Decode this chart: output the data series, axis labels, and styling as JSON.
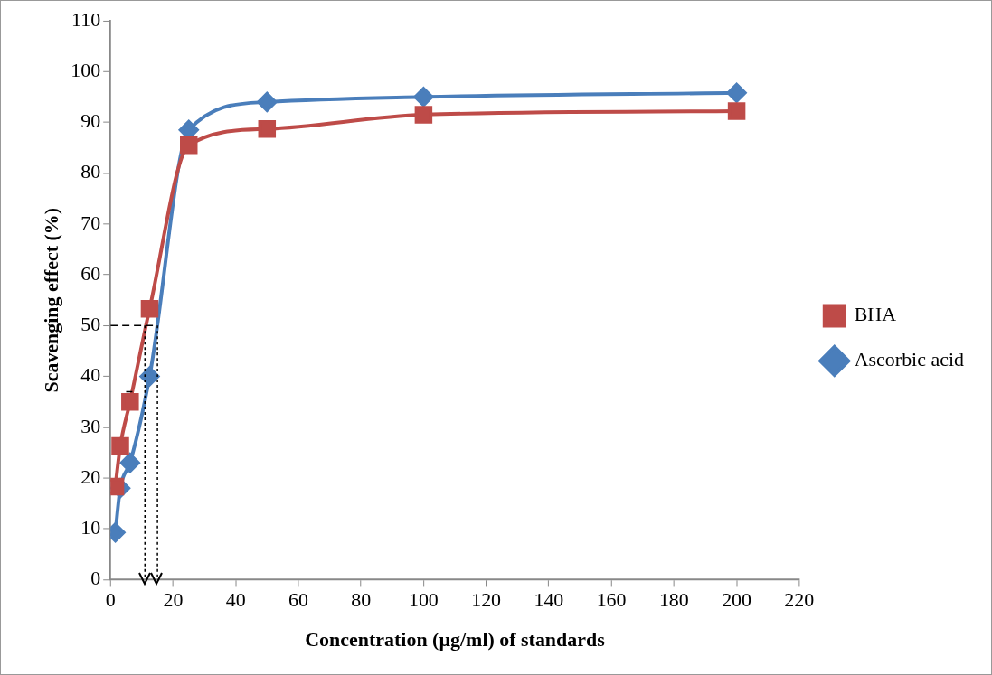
{
  "chart_data": {
    "type": "line",
    "xlabel": "Concentration (µg/ml) of standards",
    "ylabel": "Scavenging effect (%)",
    "xlim": [
      0,
      220
    ],
    "xticks": [
      0,
      20,
      40,
      60,
      80,
      100,
      120,
      140,
      160,
      180,
      200,
      220
    ],
    "ylim": [
      0,
      110
    ],
    "yticks": [
      0,
      10,
      20,
      30,
      40,
      50,
      60,
      70,
      80,
      90,
      100,
      110
    ],
    "grid": false,
    "legend": "right",
    "series": [
      {
        "name": "Ascorbic acid",
        "color": "#4a7ebb",
        "marker": "diamond",
        "x": [
          1.56,
          3.125,
          6.25,
          12.5,
          25,
          50,
          100,
          200
        ],
        "values": [
          9.3,
          18,
          23,
          40,
          88.5,
          94,
          95,
          95.8
        ]
      },
      {
        "name": "BHA",
        "color": "#be4b48",
        "marker": "square",
        "x": [
          1.56,
          3.125,
          6.25,
          12.5,
          25,
          50,
          100,
          200
        ],
        "values": [
          18.3,
          26.3,
          35,
          53.3,
          85.5,
          88.7,
          91.5,
          92.2
        ]
      },
      {
        "color": "#000000",
        "marker": "none",
        "line_style": "dashed",
        "x": [
          0,
          14.5
        ],
        "values": [
          50,
          50
        ]
      },
      {
        "color": "#000000",
        "marker": "none",
        "line_style": "dashed",
        "x": [
          5,
          7
        ],
        "values": [
          37,
          37
        ]
      },
      {
        "color": "#000000",
        "line_style": "dotted",
        "x": [
          11,
          11
        ],
        "values": [
          50,
          0
        ]
      },
      {
        "color": "#000000",
        "line_style": "dotted",
        "x": [
          15,
          15
        ],
        "values": [
          50,
          0
        ]
      }
    ]
  }
}
